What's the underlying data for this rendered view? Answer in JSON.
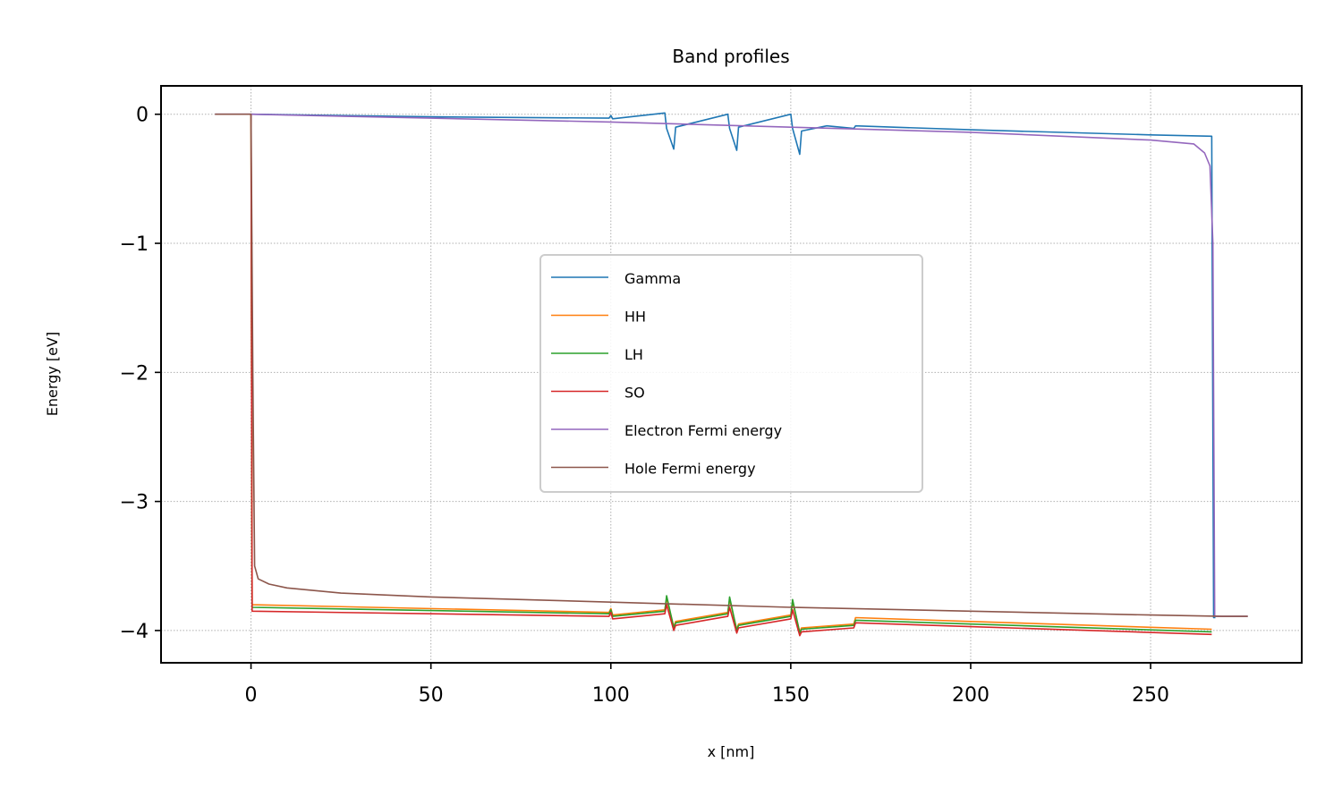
{
  "chart_data": {
    "type": "line",
    "title": "Band profiles",
    "xlabel": "x [nm]",
    "ylabel": "Energy [eV]",
    "xlim": [
      -25,
      292
    ],
    "ylim": [
      -4.25,
      0.22
    ],
    "xticks": [
      0,
      50,
      100,
      150,
      200,
      250
    ],
    "yticks": [
      0,
      -1,
      -2,
      -3,
      -4
    ],
    "ytick_labels": [
      "0",
      "−1",
      "−2",
      "−3",
      "−4"
    ],
    "grid": true,
    "legend_position": "center",
    "series": [
      {
        "name": "Gamma",
        "color": "#1f77b4",
        "x": [
          0,
          50,
          99.5,
          100,
          100.5,
          115,
          115.5,
          117.5,
          118,
          132.5,
          133,
          135,
          135.5,
          150,
          150.5,
          152.5,
          153,
          160,
          167.5,
          168,
          200,
          250,
          267,
          267.5,
          268
        ],
        "y": [
          0,
          -0.02,
          -0.03,
          -0.01,
          -0.035,
          0.01,
          -0.11,
          -0.27,
          -0.1,
          0.0,
          -0.11,
          -0.28,
          -0.1,
          0.0,
          -0.11,
          -0.31,
          -0.13,
          -0.09,
          -0.11,
          -0.09,
          -0.12,
          -0.16,
          -0.17,
          -3.9,
          -3.9
        ]
      },
      {
        "name": "HH",
        "color": "#ff7f0e",
        "x": [
          0,
          0.3,
          99.5,
          100,
          100.5,
          115,
          115.5,
          117.5,
          118,
          132.5,
          133,
          135,
          135.5,
          150,
          150.5,
          152.5,
          153,
          167.5,
          168,
          200,
          267
        ],
        "y": [
          0,
          -3.8,
          -3.86,
          -3.83,
          -3.88,
          -3.84,
          -3.75,
          -3.97,
          -3.93,
          -3.86,
          -3.76,
          -3.99,
          -3.95,
          -3.88,
          -3.78,
          -4.01,
          -3.98,
          -3.95,
          -3.9,
          -3.93,
          -3.99
        ]
      },
      {
        "name": "LH",
        "color": "#2ca02c",
        "x": [
          0,
          0.3,
          99.5,
          100,
          100.5,
          115,
          115.5,
          117.5,
          118,
          132.5,
          133,
          135,
          135.5,
          150,
          150.5,
          152.5,
          153,
          167.5,
          168,
          200,
          267
        ],
        "y": [
          0,
          -3.82,
          -3.87,
          -3.84,
          -3.89,
          -3.85,
          -3.73,
          -3.98,
          -3.94,
          -3.87,
          -3.74,
          -4.0,
          -3.96,
          -3.89,
          -3.76,
          -4.02,
          -3.99,
          -3.96,
          -3.92,
          -3.95,
          -4.01
        ]
      },
      {
        "name": "SO",
        "color": "#d62728",
        "x": [
          0,
          0.3,
          99.5,
          100,
          100.5,
          115,
          115.5,
          117.5,
          118,
          132.5,
          133,
          135,
          135.5,
          150,
          150.5,
          152.5,
          153,
          167.5,
          168,
          200,
          267
        ],
        "y": [
          0,
          -3.85,
          -3.89,
          -3.86,
          -3.91,
          -3.87,
          -3.8,
          -4.0,
          -3.96,
          -3.89,
          -3.82,
          -4.02,
          -3.98,
          -3.91,
          -3.84,
          -4.04,
          -4.01,
          -3.98,
          -3.94,
          -3.97,
          -4.03
        ]
      },
      {
        "name": "Electron Fermi energy",
        "color": "#9467bd",
        "x": [
          -10,
          0,
          50,
          100,
          150,
          200,
          250,
          262,
          265,
          266.5,
          267.3,
          267.8,
          277
        ],
        "y": [
          0,
          0,
          -0.03,
          -0.06,
          -0.1,
          -0.14,
          -0.2,
          -0.23,
          -0.3,
          -0.4,
          -1.0,
          -3.89,
          -3.89
        ]
      },
      {
        "name": "Hole Fermi energy",
        "color": "#8c564b",
        "x": [
          -10,
          0,
          0.5,
          1,
          2,
          5,
          10,
          25,
          50,
          100,
          150,
          200,
          250,
          270,
          277
        ],
        "y": [
          0,
          0,
          -2.0,
          -3.5,
          -3.6,
          -3.64,
          -3.67,
          -3.71,
          -3.74,
          -3.78,
          -3.82,
          -3.85,
          -3.88,
          -3.89,
          -3.89
        ]
      }
    ]
  }
}
